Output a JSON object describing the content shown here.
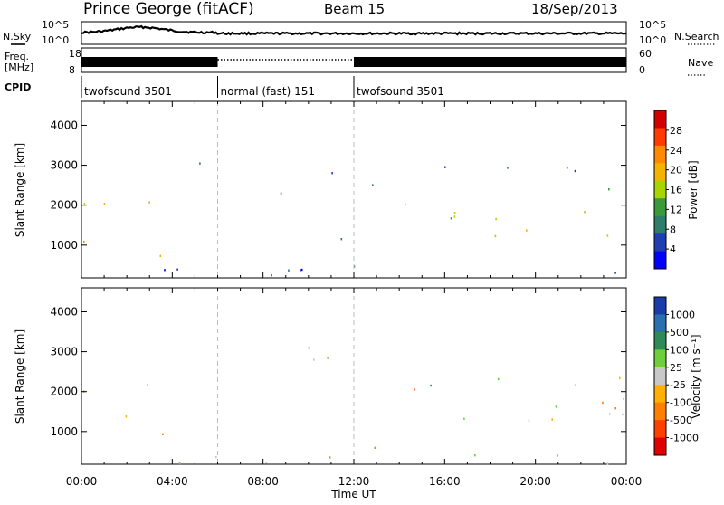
{
  "header": {
    "station": "Prince George (fitACF)",
    "beam": "Beam 15",
    "date": "18/Sep/2013"
  },
  "status_panel": {
    "left_labels": {
      "nsky": "N.Sky",
      "freq": "Freq.",
      "freq_unit": "[MHz]",
      "cpid": "CPID"
    },
    "right_labels": {
      "nsearch": "N.Search",
      "nave": "Nave"
    },
    "noise_axis_left": [
      "10^5",
      "10^0"
    ],
    "noise_axis_right": [
      "10^5",
      "10^0"
    ],
    "freq_axis": [
      "18",
      "8"
    ],
    "nave_axis": [
      "60",
      "0"
    ],
    "cpid_segments": [
      {
        "label": "twofsound 3501",
        "start_hour": 0,
        "end_hour": 6
      },
      {
        "label": "normal (fast) 151",
        "start_hour": 6,
        "end_hour": 12
      },
      {
        "label": "twofsound 3501",
        "start_hour": 12,
        "end_hour": 24
      }
    ]
  },
  "power_panel": {
    "ylabel": "Slant Range [km]",
    "yticks": [
      "4000",
      "3000",
      "2000",
      "1000"
    ],
    "colorbar_label": "Power [dB]",
    "colorbar_ticks": [
      "28",
      "24",
      "20",
      "16",
      "12",
      "8",
      "4"
    ],
    "colorbar_colors": [
      "#d40000",
      "#ff3b00",
      "#ff8a00",
      "#f2b400",
      "#a8d400",
      "#3a9a3a",
      "#2e7d6b",
      "#1f3fb0",
      "#0000ff"
    ]
  },
  "velocity_panel": {
    "ylabel": "Slant Range [km]",
    "yticks": [
      "4000",
      "3000",
      "2000",
      "1000"
    ],
    "colorbar_label": "Velocity [m s⁻¹]",
    "colorbar_ticks": [
      "1000",
      "500",
      "100",
      "25",
      "-25",
      "-100",
      "-500",
      "-1000"
    ],
    "colorbar_colors": [
      "#1a3ca8",
      "#2a6fb0",
      "#2e8b57",
      "#6fcf3a",
      "#c8c8c8",
      "#ffb000",
      "#ff8000",
      "#ff4000",
      "#e00000"
    ]
  },
  "xaxis": {
    "label": "Time UT",
    "ticks": [
      "00:00",
      "04:00",
      "08:00",
      "12:00",
      "16:00",
      "20:00",
      "00:00"
    ]
  },
  "chart_data": [
    {
      "type": "heatmap",
      "title": "Power",
      "x_range_hours": [
        0,
        24
      ],
      "y_range_km": [
        180,
        4600
      ],
      "value_range_db": [
        0,
        31
      ],
      "scatter_regions": [
        {
          "t0": 0.0,
          "t1": 2.4,
          "r0": 1250,
          "r1": 2100,
          "db": 18
        },
        {
          "t0": 0.0,
          "t1": 1.6,
          "r0": 1100,
          "r1": 1400,
          "db": 24
        },
        {
          "t0": 2.2,
          "t1": 4.2,
          "r0": 1850,
          "r1": 2250,
          "db": 14
        },
        {
          "t0": 1.8,
          "t1": 3.8,
          "r0": 700,
          "r1": 1150,
          "db": 16
        },
        {
          "t0": 3.7,
          "t1": 4.1,
          "r0": 650,
          "r1": 900,
          "db": 28
        },
        {
          "t0": 4.0,
          "t1": 5.5,
          "r0": 2600,
          "r1": 3100,
          "db": 6
        },
        {
          "t0": 8.2,
          "t1": 9.0,
          "r0": 1800,
          "r1": 2800,
          "db": 5
        },
        {
          "t0": 9.0,
          "t1": 11.5,
          "r0": 1100,
          "r1": 1400,
          "db": 6
        },
        {
          "t0": 11.0,
          "t1": 12.2,
          "r0": 2600,
          "r1": 3000,
          "db": 5
        },
        {
          "t0": 12.5,
          "t1": 13.7,
          "r0": 1900,
          "r1": 2600,
          "db": 6
        },
        {
          "t0": 13.4,
          "t1": 15.0,
          "r0": 420,
          "r1": 600,
          "db": 26
        },
        {
          "t0": 13.2,
          "t1": 13.6,
          "r0": 700,
          "r1": 1100,
          "db": 22
        },
        {
          "t0": 14.0,
          "t1": 16.5,
          "r0": 1600,
          "r1": 2300,
          "db": 18
        },
        {
          "t0": 16.0,
          "t1": 24.0,
          "r0": 1250,
          "r1": 1550,
          "db": 20
        },
        {
          "t0": 16.0,
          "t1": 24.0,
          "r0": 1650,
          "r1": 2150,
          "db": 17
        },
        {
          "t0": 19.0,
          "t1": 24.0,
          "r0": 2300,
          "r1": 2500,
          "db": 12
        },
        {
          "t0": 15.5,
          "t1": 24.0,
          "r0": 2800,
          "r1": 3200,
          "db": 5
        },
        {
          "t0": 0.0,
          "t1": 24.0,
          "r0": 200,
          "r1": 500,
          "db": 4
        },
        {
          "t0": 6.0,
          "t1": 8.0,
          "r0": 600,
          "r1": 700,
          "db": 6
        }
      ]
    },
    {
      "type": "heatmap",
      "title": "Velocity",
      "x_range_hours": [
        0,
        24
      ],
      "y_range_km": [
        180,
        4600
      ],
      "value_range_ms": [
        -1000,
        1000
      ],
      "scatter_regions": [
        {
          "t0": 0.0,
          "t1": 2.2,
          "r0": 1250,
          "r1": 2100,
          "v": 0
        },
        {
          "t0": 2.2,
          "t1": 4.2,
          "r0": 1850,
          "r1": 2250,
          "v": 0
        },
        {
          "t0": 2.0,
          "t1": 3.9,
          "r0": 850,
          "r1": 1150,
          "v": -300
        },
        {
          "t0": 2.0,
          "t1": 3.9,
          "r0": 650,
          "r1": 850,
          "v": 60
        },
        {
          "t0": 6.0,
          "t1": 9.0,
          "r0": 600,
          "r1": 700,
          "v": 50
        },
        {
          "t0": 8.0,
          "t1": 11.8,
          "r0": 2800,
          "r1": 3400,
          "v": 0
        },
        {
          "t0": 12.5,
          "t1": 13.7,
          "r0": 600,
          "r1": 1100,
          "v": -250
        },
        {
          "t0": 13.0,
          "t1": 15.0,
          "r0": 420,
          "r1": 600,
          "v": -120
        },
        {
          "t0": 14.2,
          "t1": 16.5,
          "r0": 1600,
          "r1": 2100,
          "v": -600
        },
        {
          "t0": 14.5,
          "t1": 16.0,
          "r0": 2100,
          "r1": 2500,
          "v": 300
        },
        {
          "t0": 16.5,
          "t1": 24.0,
          "r0": 1250,
          "r1": 2400,
          "v": 0
        },
        {
          "t0": 21.0,
          "t1": 24.0,
          "r0": 1300,
          "r1": 1800,
          "v": -200
        },
        {
          "t0": 0.0,
          "t1": 24.0,
          "r0": 200,
          "r1": 450,
          "v": 40
        }
      ]
    }
  ]
}
